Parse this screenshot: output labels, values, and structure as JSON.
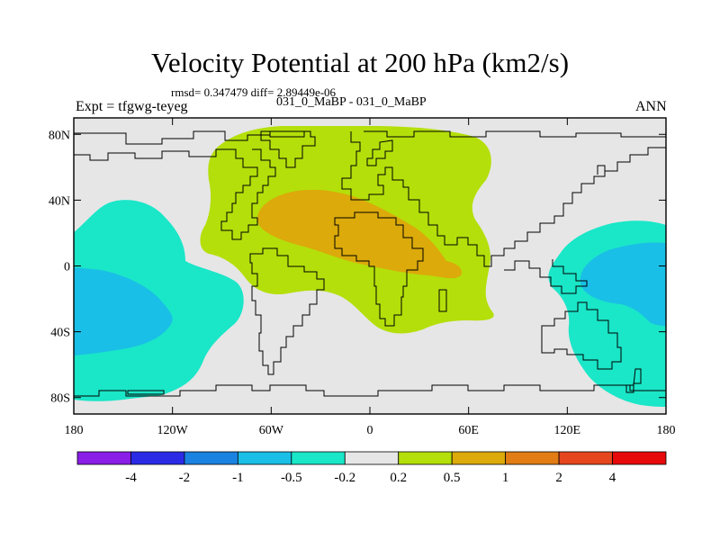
{
  "chart_data": {
    "type": "contour-map",
    "title": "Velocity Potential at 200 hPa (km2/s)",
    "stats_line": "rmsd= 0.347479 diff= 2.89449e-06",
    "experiment_label": "Expt = tfgwg-teyeg",
    "cases_label": "031_0_MaBP - 031_0_MaBP",
    "season_label": "ANN",
    "x_axis": {
      "lim": [
        0,
        360
      ],
      "ticks": [
        0,
        60,
        120,
        180,
        240,
        300,
        360
      ],
      "tick_labels": [
        "180",
        "120W",
        "60W",
        "0",
        "60E",
        "120E",
        "180"
      ]
    },
    "y_axis": {
      "lim": [
        -90,
        90
      ],
      "ticks": [
        80,
        40,
        0,
        -40,
        -80
      ],
      "tick_labels": [
        "80N",
        "40N",
        "0",
        "40S",
        "80S"
      ]
    },
    "colorbar": {
      "levels": [
        "-4",
        "-2",
        "-1",
        "-0.5",
        "-0.2",
        "0.2",
        "0.5",
        "1",
        "2",
        "4"
      ],
      "colors": [
        "#8a1ee6",
        "#2b2be6",
        "#1a82e0",
        "#19bfe6",
        "#1ae6c8",
        "#e6e6e6",
        "#b4df0a",
        "#dcaa0a",
        "#e17d14",
        "#e6461e",
        "#e60a0a"
      ]
    },
    "fields": [
      {
        "name": "pacific-west-negative-outer",
        "level": "-0.5 to -0.2",
        "color": "#1ae6c8"
      },
      {
        "name": "pacific-west-negative-core",
        "level": "-1 to -0.5",
        "color": "#19bfe6"
      },
      {
        "name": "pacific-east-negative-outer",
        "level": "-0.5 to -0.2",
        "color": "#1ae6c8"
      },
      {
        "name": "pacific-east-negative-core",
        "level": "-1 to -0.5",
        "color": "#19bfe6"
      },
      {
        "name": "africa-eurasia-positive-outer",
        "level": "0.2 to 0.5",
        "color": "#b4df0a"
      },
      {
        "name": "africa-eurasia-positive-core",
        "level": "0.5 to 1",
        "color": "#dcaa0a"
      }
    ]
  }
}
